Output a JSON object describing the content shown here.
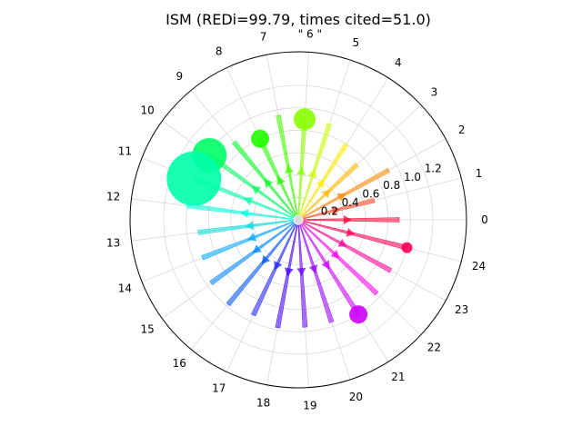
{
  "chart_data": {
    "type": "polar-arrow",
    "title": "ISM (REDi=99.79, times cited=51.0)",
    "rlim": [
      0,
      1.5
    ],
    "rticks": [
      "0.2",
      "0.4",
      "0.6",
      "0.8",
      "1.0",
      "1.2"
    ],
    "rtick_values": [
      0.2,
      0.4,
      0.6,
      0.8,
      1.0,
      1.2
    ],
    "grid": true,
    "categories": [
      "0",
      "1",
      "2",
      "3",
      "4",
      "5",
      "\" 6 \"",
      "7",
      "8",
      "9",
      "10",
      "11",
      "12",
      "13",
      "14",
      "15",
      "16",
      "17",
      "18",
      "19",
      "20",
      "21",
      "22",
      "23",
      "24"
    ],
    "arrow_lengths": [
      0.9,
      0.7,
      0.92,
      0.72,
      0.8,
      0.9,
      0.9,
      0.95,
      0.8,
      0.9,
      0.98,
      1.0,
      1.0,
      0.9,
      0.92,
      0.96,
      0.98,
      0.94,
      0.98,
      0.96,
      0.96,
      1.0,
      0.96,
      0.94,
      1.0
    ],
    "bubble_sizes": [
      0,
      0,
      0,
      0,
      0,
      0,
      12,
      0,
      10,
      0,
      19,
      30,
      0,
      0,
      0,
      0,
      0,
      0,
      0,
      0,
      0,
      10,
      0,
      0,
      6
    ],
    "colors": [
      "#ff0033",
      "#ff4422",
      "#ff8800",
      "#ffbb00",
      "#ffee00",
      "#ccff00",
      "#88ff00",
      "#44ff00",
      "#22ff00",
      "#00ff22",
      "#00ff66",
      "#00ffaa",
      "#00ffdd",
      "#00dddd",
      "#00aaff",
      "#0088ff",
      "#0055ff",
      "#2222ff",
      "#4400ff",
      "#6600ff",
      "#9900ff",
      "#cc00ff",
      "#ff00ee",
      "#ff0099",
      "#ff0055"
    ]
  }
}
